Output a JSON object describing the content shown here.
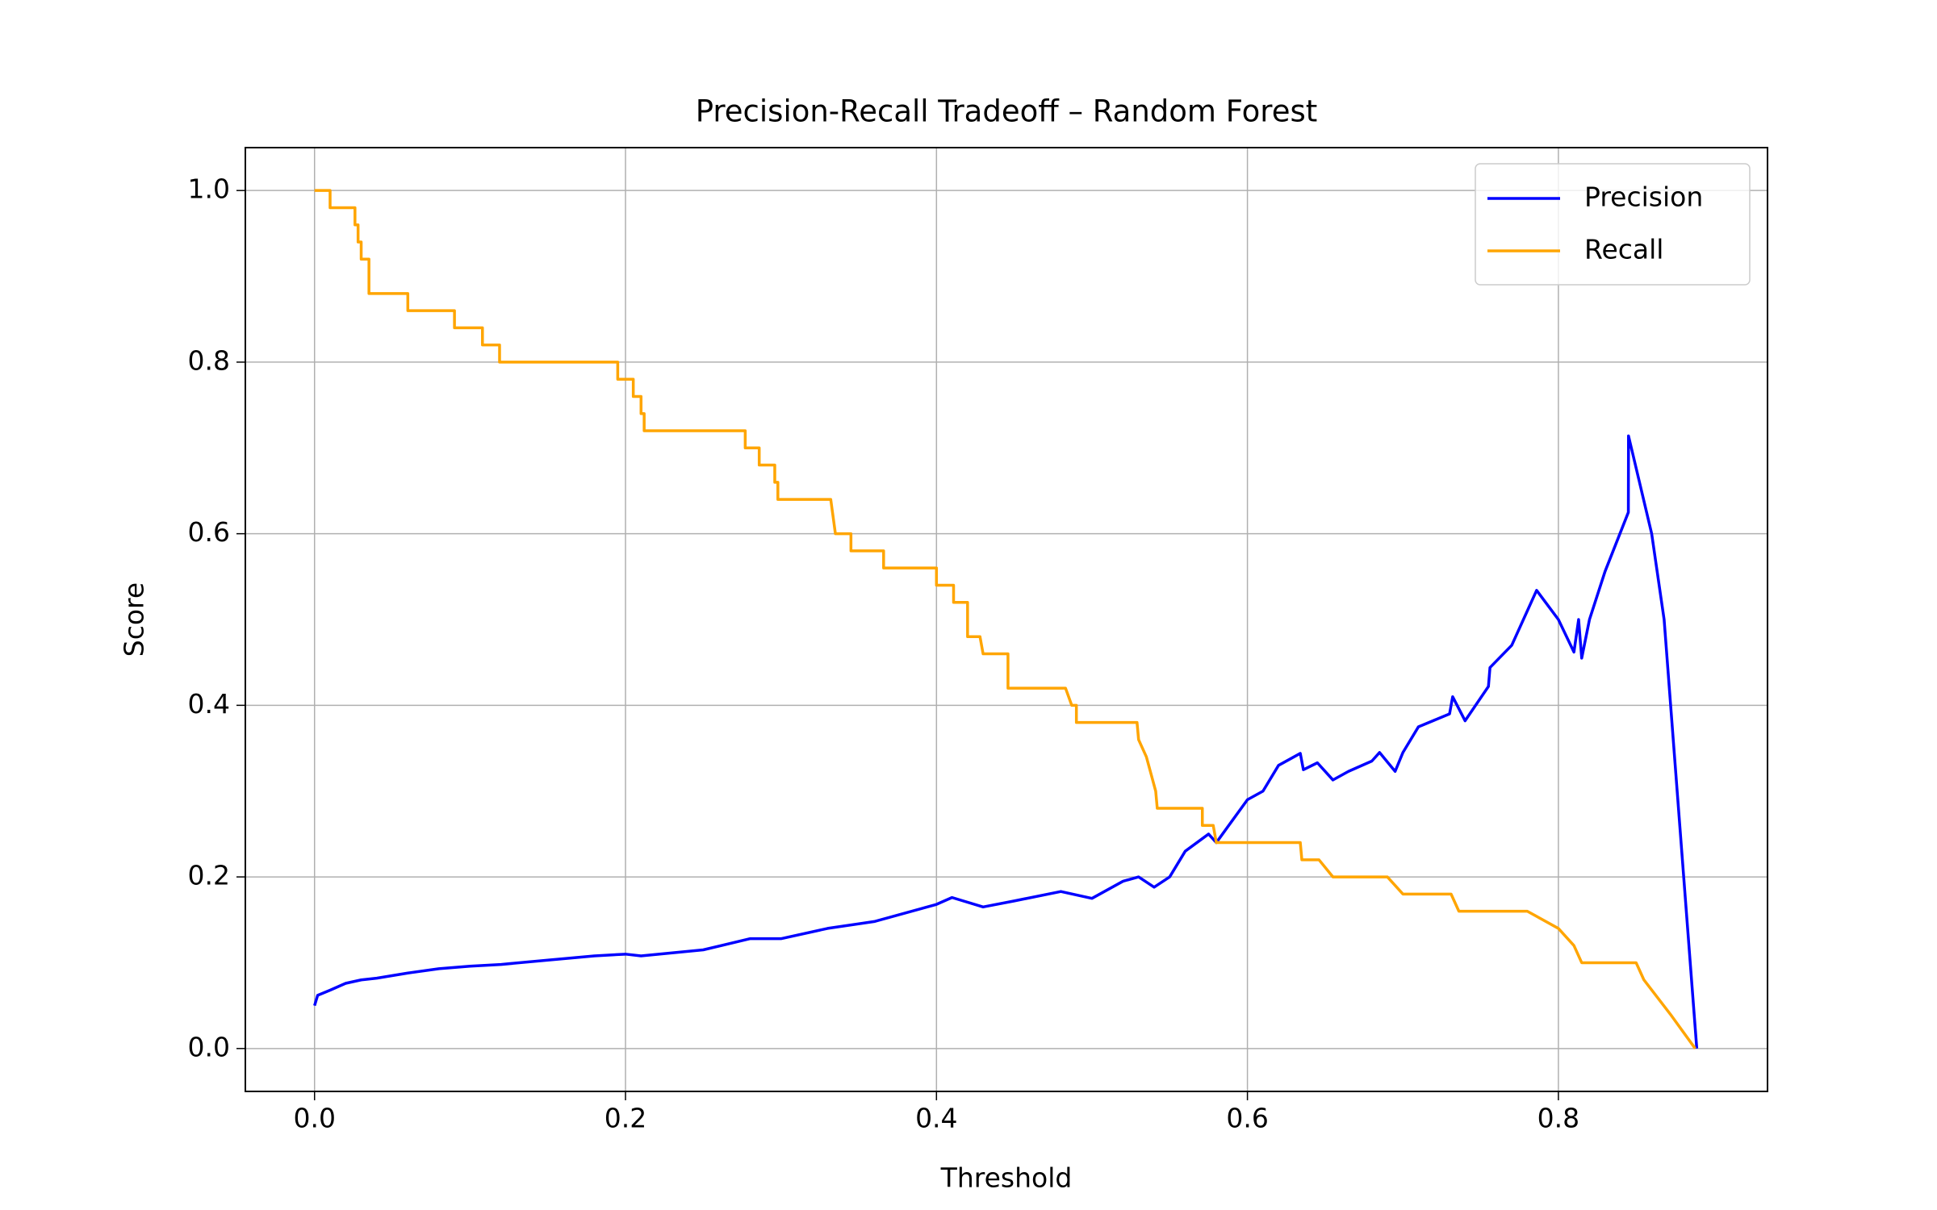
{
  "chart_data": {
    "type": "line",
    "title": "Precision-Recall Tradeoff – Random Forest",
    "x_label": "Threshold",
    "y_label": "Score",
    "xlim": [
      -0.0445,
      0.9345
    ],
    "ylim": [
      -0.05,
      1.05
    ],
    "xticks": [
      {
        "value": 0,
        "label": "0.0"
      },
      0.2,
      0.4,
      0.6,
      0.8
    ],
    "yticks": [
      {
        "value": 0,
        "label": "0.0"
      },
      0.2,
      0.4,
      0.6,
      0.8,
      {
        "value": 1,
        "label": "1.0"
      }
    ],
    "grid": true,
    "legend": "upper right",
    "series": [
      {
        "name": "Precision",
        "color": "#0000ff",
        "x": [
          0,
          0.002,
          0.01,
          0.02,
          0.03,
          0.04,
          0.06,
          0.08,
          0.1,
          0.12,
          0.15,
          0.18,
          0.2,
          0.21,
          0.25,
          0.28,
          0.3,
          0.33,
          0.36,
          0.4,
          0.41,
          0.43,
          0.45,
          0.48,
          0.5,
          0.52,
          0.53,
          0.54,
          0.55,
          0.56,
          0.575,
          0.58,
          0.59,
          0.6,
          0.61,
          0.62,
          0.634,
          0.636,
          0.645,
          0.655,
          0.665,
          0.68,
          0.685,
          0.695,
          0.7,
          0.71,
          0.73,
          0.732,
          0.74,
          0.755,
          0.756,
          0.77,
          0.786,
          0.8,
          0.81,
          0.813,
          0.815,
          0.82,
          0.83,
          0.845,
          0.8451,
          0.86,
          0.868,
          0.875,
          0.889
        ],
        "values": [
          0.05,
          0.062,
          0.068,
          0.076,
          0.08,
          0.082,
          0.088,
          0.093,
          0.096,
          0.098,
          0.103,
          0.108,
          0.11,
          0.108,
          0.115,
          0.128,
          0.128,
          0.14,
          0.148,
          0.168,
          0.176,
          0.165,
          0.172,
          0.183,
          0.175,
          0.195,
          0.2,
          0.188,
          0.2,
          0.23,
          0.25,
          0.24,
          0.265,
          0.29,
          0.3,
          0.33,
          0.344,
          0.325,
          0.333,
          0.313,
          0.323,
          0.335,
          0.345,
          0.323,
          0.345,
          0.375,
          0.39,
          0.41,
          0.382,
          0.422,
          0.444,
          0.47,
          0.534,
          0.5,
          0.462,
          0.5,
          0.455,
          0.5,
          0.556,
          0.625,
          0.714,
          0.6,
          0.5,
          0.333,
          0.0
        ]
      },
      {
        "name": "Recall",
        "color": "#ffa500",
        "x": [
          0,
          0.01,
          0.01,
          0.026,
          0.026,
          0.028,
          0.028,
          0.03,
          0.03,
          0.035,
          0.035,
          0.06,
          0.06,
          0.09,
          0.09,
          0.108,
          0.108,
          0.119,
          0.119,
          0.195,
          0.195,
          0.205,
          0.205,
          0.21,
          0.21,
          0.212,
          0.212,
          0.277,
          0.277,
          0.286,
          0.286,
          0.296,
          0.296,
          0.298,
          0.298,
          0.332,
          0.335,
          0.345,
          0.345,
          0.366,
          0.366,
          0.4,
          0.4,
          0.411,
          0.411,
          0.42,
          0.42,
          0.428,
          0.43,
          0.446,
          0.446,
          0.483,
          0.487,
          0.49,
          0.49,
          0.529,
          0.53,
          0.535,
          0.538,
          0.541,
          0.542,
          0.571,
          0.571,
          0.578,
          0.58,
          0.634,
          0.635,
          0.646,
          0.655,
          0.69,
          0.7,
          0.731,
          0.736,
          0.78,
          0.8,
          0.81,
          0.815,
          0.85,
          0.855,
          0.872,
          0.88,
          0.888
        ],
        "values": [
          1.0,
          1.0,
          0.98,
          0.98,
          0.96,
          0.96,
          0.94,
          0.94,
          0.92,
          0.92,
          0.88,
          0.88,
          0.86,
          0.86,
          0.84,
          0.84,
          0.82,
          0.82,
          0.8,
          0.8,
          0.78,
          0.78,
          0.76,
          0.76,
          0.74,
          0.74,
          0.72,
          0.72,
          0.7,
          0.7,
          0.68,
          0.68,
          0.66,
          0.66,
          0.64,
          0.64,
          0.6,
          0.6,
          0.58,
          0.58,
          0.56,
          0.56,
          0.54,
          0.54,
          0.52,
          0.52,
          0.48,
          0.48,
          0.46,
          0.46,
          0.42,
          0.42,
          0.4,
          0.4,
          0.38,
          0.38,
          0.36,
          0.34,
          0.32,
          0.3,
          0.28,
          0.28,
          0.26,
          0.26,
          0.24,
          0.24,
          0.22,
          0.22,
          0.2,
          0.2,
          0.18,
          0.18,
          0.16,
          0.16,
          0.14,
          0.12,
          0.1,
          0.1,
          0.08,
          0.04,
          0.02,
          0.0
        ]
      }
    ]
  }
}
